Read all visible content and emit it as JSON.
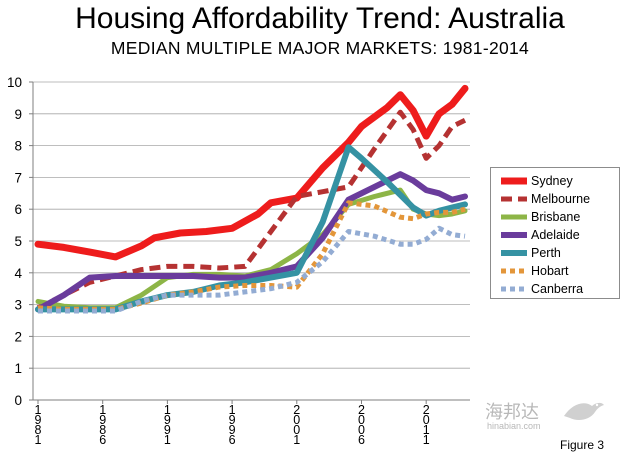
{
  "chart_data": {
    "type": "line",
    "title": "Housing Affordability Trend: Australia",
    "subtitle": "MEDIAN MULTIPLE MAJOR MARKETS: 1981-2014",
    "xlabel": "",
    "ylabel": "",
    "ylim": [
      0,
      10
    ],
    "yticks": [
      0,
      1,
      2,
      3,
      4,
      5,
      6,
      7,
      8,
      9,
      10
    ],
    "xlim": [
      1981,
      2014
    ],
    "x_tick_labels": [
      {
        "x": 1981,
        "label": "1 9 8 1"
      },
      {
        "x": 1986,
        "label": "1 9 8 6"
      },
      {
        "x": 1991,
        "label": "1 9 9 1"
      },
      {
        "x": 1996,
        "label": "1 9 9 6"
      },
      {
        "x": 2001,
        "label": "2 0 0 1"
      },
      {
        "x": 2006,
        "label": "2 0 0 6"
      },
      {
        "x": 2011,
        "label": "2 0 1 1"
      }
    ],
    "grid": true,
    "legend_position": "right",
    "series": [
      {
        "name": "Sydney",
        "color": "#ee1c1c",
        "style": "solid",
        "width": 7,
        "x": [
          1981,
          1983,
          1985,
          1987,
          1989,
          1990,
          1992,
          1994,
          1996,
          1998,
          1999,
          2001,
          2003,
          2005,
          2006,
          2008,
          2009,
          2010,
          2011,
          2012,
          2013,
          2014
        ],
        "y": [
          4.9,
          4.8,
          4.65,
          4.5,
          4.85,
          5.1,
          5.25,
          5.3,
          5.4,
          5.85,
          6.2,
          6.35,
          7.3,
          8.1,
          8.6,
          9.2,
          9.6,
          9.1,
          8.3,
          9.0,
          9.3,
          9.8
        ]
      },
      {
        "name": "Melbourne",
        "color": "#b53232",
        "style": "dash",
        "width": 5,
        "x": [
          1981,
          1983,
          1985,
          1987,
          1989,
          1991,
          1993,
          1995,
          1997,
          1999,
          2001,
          2003,
          2005,
          2007,
          2009,
          2010,
          2011,
          2012,
          2013,
          2014
        ],
        "y": [
          2.9,
          3.3,
          3.7,
          3.9,
          4.1,
          4.2,
          4.2,
          4.15,
          4.2,
          5.3,
          6.4,
          6.55,
          6.7,
          7.9,
          9.05,
          8.5,
          7.6,
          8.0,
          8.6,
          8.8
        ]
      },
      {
        "name": "Brisbane",
        "color": "#8db547",
        "style": "solid",
        "width": 5,
        "x": [
          1981,
          1983,
          1985,
          1987,
          1989,
          1991,
          1993,
          1995,
          1997,
          1999,
          2001,
          2003,
          2005,
          2007,
          2009,
          2010,
          2011,
          2012,
          2013,
          2014
        ],
        "y": [
          3.1,
          2.95,
          2.9,
          2.9,
          3.3,
          3.85,
          3.95,
          3.95,
          3.9,
          4.1,
          4.6,
          5.2,
          6.15,
          6.4,
          6.6,
          6.0,
          5.85,
          5.8,
          5.85,
          5.95
        ]
      },
      {
        "name": "Adelaide",
        "color": "#6a3c9c",
        "style": "solid",
        "width": 6,
        "x": [
          1981,
          1983,
          1985,
          1987,
          1989,
          1991,
          1993,
          1995,
          1997,
          1999,
          2001,
          2003,
          2005,
          2007,
          2009,
          2010,
          2011,
          2012,
          2013,
          2014
        ],
        "y": [
          2.85,
          3.3,
          3.85,
          3.9,
          3.9,
          3.9,
          3.9,
          3.85,
          3.85,
          4.0,
          4.2,
          5.1,
          6.3,
          6.7,
          7.1,
          6.9,
          6.6,
          6.5,
          6.3,
          6.4
        ]
      },
      {
        "name": "Perth",
        "color": "#3592a3",
        "style": "solid",
        "width": 6,
        "x": [
          1981,
          1983,
          1985,
          1987,
          1989,
          1991,
          1993,
          1995,
          1997,
          1999,
          2001,
          2003,
          2005,
          2006,
          2008,
          2009,
          2010,
          2011,
          2012,
          2013,
          2014
        ],
        "y": [
          2.85,
          2.85,
          2.85,
          2.85,
          3.1,
          3.3,
          3.4,
          3.6,
          3.7,
          3.85,
          4.0,
          5.6,
          7.95,
          7.6,
          6.85,
          6.45,
          6.05,
          5.8,
          5.95,
          6.05,
          6.15
        ]
      },
      {
        "name": "Hobart",
        "color": "#e3963a",
        "style": "dot",
        "width": 5,
        "x": [
          1981,
          1983,
          1985,
          1987,
          1989,
          1991,
          1993,
          1995,
          1997,
          1999,
          2001,
          2003,
          2005,
          2007,
          2009,
          2010,
          2011,
          2012,
          2013,
          2014
        ],
        "y": [
          2.9,
          2.85,
          2.85,
          2.85,
          3.05,
          3.3,
          3.4,
          3.55,
          3.6,
          3.6,
          3.55,
          4.6,
          6.2,
          6.1,
          5.75,
          5.7,
          5.85,
          5.9,
          5.9,
          6.0
        ]
      },
      {
        "name": "Canberra",
        "color": "#93acd3",
        "style": "dot",
        "width": 5,
        "x": [
          1981,
          1983,
          1985,
          1987,
          1989,
          1991,
          1993,
          1995,
          1997,
          1999,
          2001,
          2003,
          2005,
          2007,
          2009,
          2010,
          2011,
          2012,
          2013,
          2014
        ],
        "y": [
          2.8,
          2.8,
          2.8,
          2.8,
          3.1,
          3.3,
          3.3,
          3.3,
          3.4,
          3.5,
          3.7,
          4.35,
          5.3,
          5.15,
          4.9,
          4.9,
          5.05,
          5.4,
          5.2,
          5.15
        ]
      }
    ]
  },
  "watermark": {
    "text_cn": "海邦达",
    "text_en": "hinabian.com"
  },
  "corner_text": "Figure 3"
}
